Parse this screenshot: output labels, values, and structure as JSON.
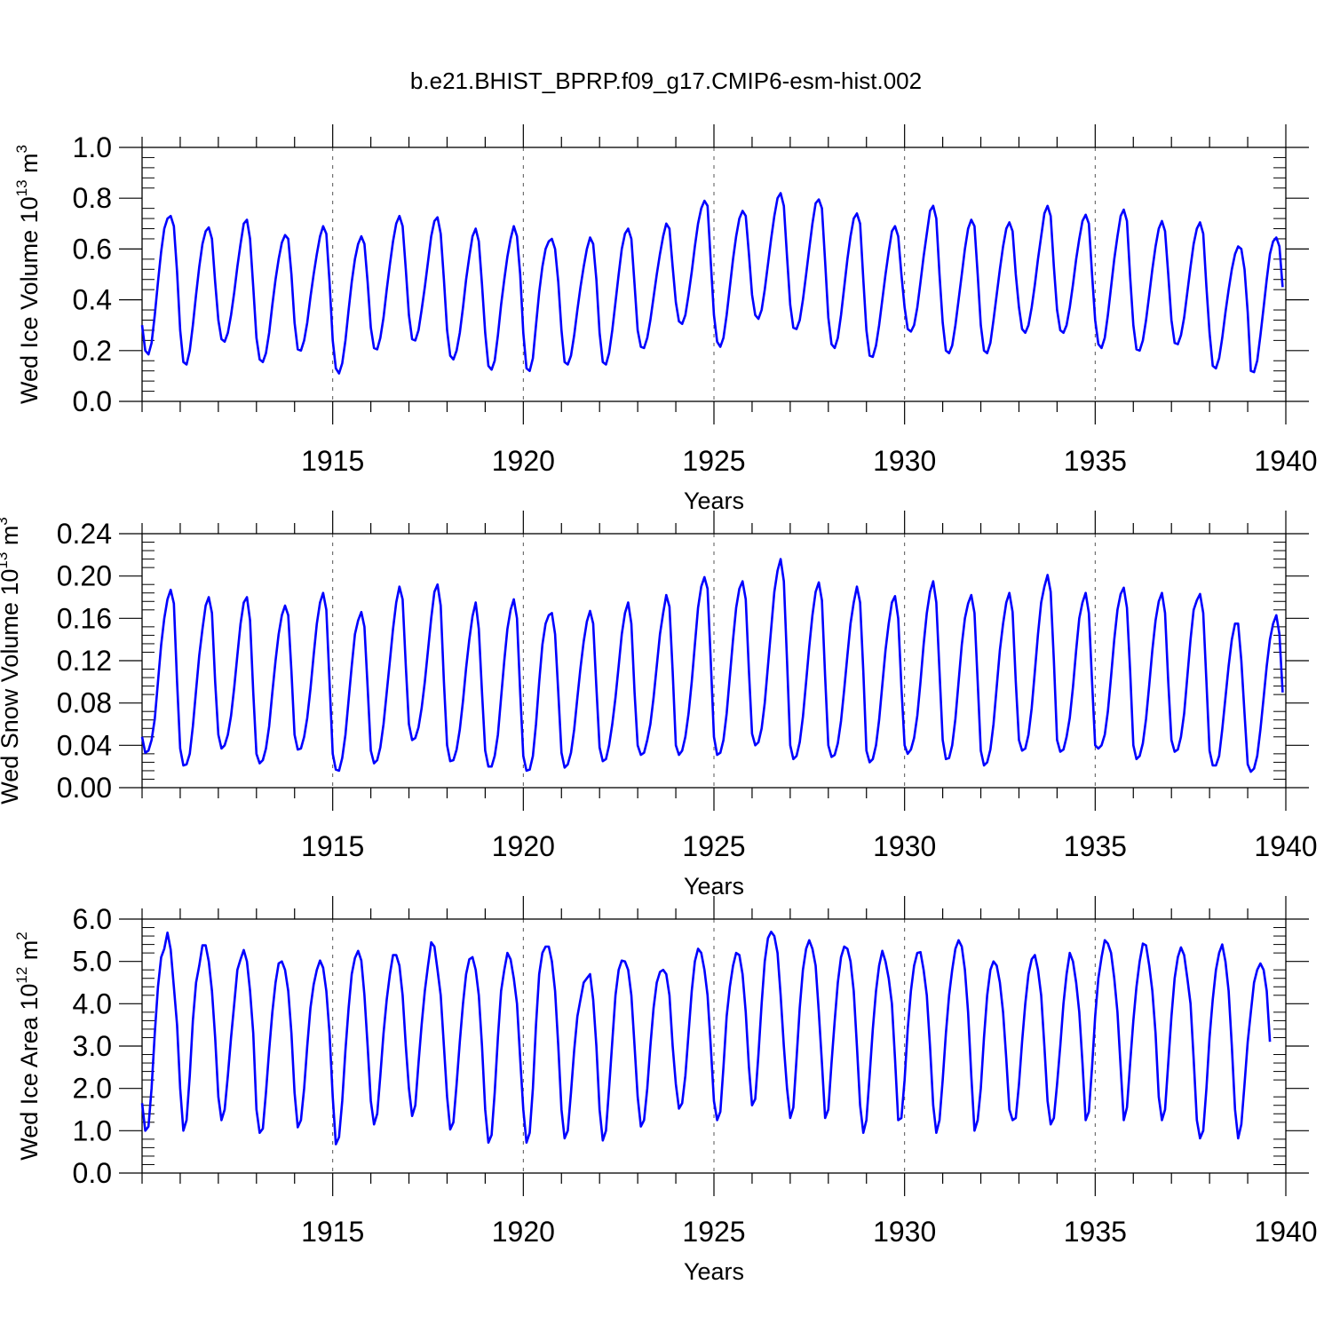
{
  "title": "b.e21.BHIST_BPRP.f09_g17.CMIP6-esm-hist.002",
  "colors": {
    "line": "#0000ff",
    "axis": "#000000",
    "grid": "#555555"
  },
  "chart_data": [
    {
      "type": "line",
      "title": "b.e21.BHIST_BPRP.f09_g17.CMIP6-esm-hist.002",
      "xlabel": "Years",
      "ylabel": {
        "text": "Wed Ice Volume 10",
        "exp": "13",
        "unit": " m",
        "unit_exp": "3"
      },
      "xlim": [
        1910.0,
        1940.0
      ],
      "ylim": [
        0.0,
        1.0
      ],
      "xticks": [
        1915,
        1920,
        1925,
        1930,
        1935,
        1940
      ],
      "xtick_labels": [
        "1915",
        "1920",
        "1925",
        "1930",
        "1935",
        "1940"
      ],
      "yticks": [
        0.0,
        0.2,
        0.4,
        0.6,
        0.8,
        1.0
      ],
      "ytick_labels": [
        "0.0",
        "0.2",
        "0.4",
        "0.6",
        "0.8",
        "1.0"
      ],
      "series_name": "Wed Ice Volume",
      "start_year": 1910.0,
      "step": 0.0833333,
      "values": [
        0.3,
        0.2,
        0.185,
        0.23,
        0.34,
        0.47,
        0.59,
        0.68,
        0.72,
        0.73,
        0.69,
        0.51,
        0.28,
        0.155,
        0.145,
        0.2,
        0.3,
        0.42,
        0.53,
        0.62,
        0.67,
        0.685,
        0.64,
        0.47,
        0.32,
        0.245,
        0.235,
        0.27,
        0.34,
        0.43,
        0.53,
        0.62,
        0.7,
        0.715,
        0.64,
        0.45,
        0.25,
        0.165,
        0.155,
        0.19,
        0.27,
        0.38,
        0.48,
        0.56,
        0.625,
        0.655,
        0.64,
        0.5,
        0.31,
        0.205,
        0.2,
        0.24,
        0.31,
        0.41,
        0.5,
        0.58,
        0.65,
        0.69,
        0.66,
        0.47,
        0.24,
        0.13,
        0.11,
        0.15,
        0.24,
        0.36,
        0.47,
        0.56,
        0.62,
        0.65,
        0.62,
        0.47,
        0.29,
        0.21,
        0.205,
        0.25,
        0.33,
        0.44,
        0.54,
        0.63,
        0.7,
        0.73,
        0.69,
        0.52,
        0.34,
        0.245,
        0.24,
        0.28,
        0.36,
        0.45,
        0.55,
        0.65,
        0.71,
        0.725,
        0.66,
        0.48,
        0.28,
        0.18,
        0.165,
        0.2,
        0.27,
        0.37,
        0.48,
        0.57,
        0.65,
        0.68,
        0.63,
        0.46,
        0.27,
        0.14,
        0.125,
        0.16,
        0.26,
        0.38,
        0.48,
        0.57,
        0.64,
        0.69,
        0.65,
        0.5,
        0.27,
        0.13,
        0.12,
        0.17,
        0.3,
        0.43,
        0.53,
        0.6,
        0.63,
        0.64,
        0.6,
        0.47,
        0.28,
        0.155,
        0.145,
        0.18,
        0.26,
        0.36,
        0.45,
        0.53,
        0.6,
        0.645,
        0.62,
        0.48,
        0.27,
        0.155,
        0.145,
        0.19,
        0.28,
        0.39,
        0.5,
        0.6,
        0.66,
        0.68,
        0.64,
        0.46,
        0.28,
        0.215,
        0.21,
        0.25,
        0.32,
        0.41,
        0.5,
        0.58,
        0.65,
        0.7,
        0.68,
        0.53,
        0.39,
        0.315,
        0.305,
        0.34,
        0.42,
        0.51,
        0.61,
        0.7,
        0.76,
        0.79,
        0.77,
        0.55,
        0.34,
        0.235,
        0.215,
        0.25,
        0.34,
        0.45,
        0.56,
        0.65,
        0.72,
        0.75,
        0.73,
        0.58,
        0.42,
        0.34,
        0.325,
        0.36,
        0.44,
        0.54,
        0.64,
        0.73,
        0.8,
        0.82,
        0.77,
        0.57,
        0.38,
        0.29,
        0.285,
        0.32,
        0.4,
        0.5,
        0.6,
        0.7,
        0.78,
        0.795,
        0.76,
        0.55,
        0.33,
        0.225,
        0.21,
        0.25,
        0.34,
        0.45,
        0.56,
        0.65,
        0.72,
        0.74,
        0.7,
        0.48,
        0.28,
        0.18,
        0.175,
        0.22,
        0.3,
        0.4,
        0.5,
        0.59,
        0.67,
        0.69,
        0.65,
        0.5,
        0.37,
        0.285,
        0.275,
        0.3,
        0.37,
        0.47,
        0.57,
        0.66,
        0.75,
        0.77,
        0.72,
        0.5,
        0.31,
        0.2,
        0.19,
        0.22,
        0.3,
        0.4,
        0.5,
        0.6,
        0.68,
        0.715,
        0.69,
        0.5,
        0.3,
        0.2,
        0.19,
        0.23,
        0.32,
        0.42,
        0.52,
        0.61,
        0.68,
        0.705,
        0.67,
        0.5,
        0.37,
        0.285,
        0.27,
        0.3,
        0.37,
        0.46,
        0.56,
        0.65,
        0.74,
        0.77,
        0.73,
        0.53,
        0.36,
        0.28,
        0.27,
        0.3,
        0.37,
        0.46,
        0.56,
        0.64,
        0.71,
        0.735,
        0.7,
        0.5,
        0.32,
        0.225,
        0.21,
        0.25,
        0.34,
        0.45,
        0.56,
        0.65,
        0.73,
        0.755,
        0.71,
        0.49,
        0.3,
        0.205,
        0.2,
        0.24,
        0.32,
        0.42,
        0.52,
        0.61,
        0.68,
        0.71,
        0.67,
        0.5,
        0.32,
        0.23,
        0.225,
        0.26,
        0.33,
        0.43,
        0.53,
        0.62,
        0.68,
        0.705,
        0.66,
        0.45,
        0.27,
        0.14,
        0.13,
        0.17,
        0.25,
        0.35,
        0.44,
        0.52,
        0.58,
        0.61,
        0.6,
        0.52,
        0.35,
        0.12,
        0.115,
        0.16,
        0.26,
        0.37,
        0.48,
        0.58,
        0.63,
        0.645,
        0.61,
        0.45
      ]
    },
    {
      "type": "line",
      "xlabel": "Years",
      "ylabel": {
        "text": "Wed Snow Volume 10",
        "exp": "13",
        "unit": " m",
        "unit_exp": "3"
      },
      "xlim": [
        1910.0,
        1940.0
      ],
      "ylim": [
        0.0,
        0.24
      ],
      "xticks": [
        1915,
        1920,
        1925,
        1930,
        1935,
        1940
      ],
      "xtick_labels": [
        "1915",
        "1920",
        "1925",
        "1930",
        "1935",
        "1940"
      ],
      "yticks": [
        0.0,
        0.04,
        0.08,
        0.12,
        0.16,
        0.2,
        0.24
      ],
      "ytick_labels": [
        "0.00",
        "0.04",
        "0.08",
        "0.12",
        "0.16",
        "0.20",
        "0.24"
      ],
      "series_name": "Wed Snow Volume",
      "start_year": 1910.0,
      "step": 0.0833333,
      "values": [
        0.048,
        0.033,
        0.035,
        0.045,
        0.065,
        0.1,
        0.135,
        0.16,
        0.178,
        0.187,
        0.174,
        0.1,
        0.037,
        0.021,
        0.022,
        0.032,
        0.058,
        0.092,
        0.125,
        0.15,
        0.172,
        0.18,
        0.165,
        0.1,
        0.05,
        0.037,
        0.04,
        0.05,
        0.068,
        0.095,
        0.125,
        0.155,
        0.175,
        0.18,
        0.158,
        0.09,
        0.032,
        0.023,
        0.026,
        0.037,
        0.058,
        0.09,
        0.12,
        0.145,
        0.163,
        0.172,
        0.163,
        0.11,
        0.05,
        0.036,
        0.037,
        0.048,
        0.066,
        0.093,
        0.125,
        0.155,
        0.175,
        0.184,
        0.168,
        0.1,
        0.032,
        0.017,
        0.016,
        0.028,
        0.05,
        0.083,
        0.115,
        0.145,
        0.158,
        0.166,
        0.152,
        0.095,
        0.035,
        0.023,
        0.026,
        0.038,
        0.06,
        0.09,
        0.12,
        0.15,
        0.175,
        0.19,
        0.178,
        0.115,
        0.06,
        0.045,
        0.047,
        0.057,
        0.075,
        0.1,
        0.13,
        0.16,
        0.185,
        0.192,
        0.172,
        0.1,
        0.04,
        0.025,
        0.026,
        0.036,
        0.055,
        0.082,
        0.113,
        0.14,
        0.162,
        0.175,
        0.15,
        0.09,
        0.035,
        0.02,
        0.02,
        0.03,
        0.05,
        0.085,
        0.12,
        0.15,
        0.168,
        0.178,
        0.16,
        0.09,
        0.03,
        0.016,
        0.017,
        0.03,
        0.06,
        0.1,
        0.135,
        0.155,
        0.163,
        0.165,
        0.145,
        0.09,
        0.033,
        0.019,
        0.022,
        0.033,
        0.055,
        0.085,
        0.113,
        0.138,
        0.157,
        0.167,
        0.155,
        0.095,
        0.038,
        0.025,
        0.027,
        0.04,
        0.06,
        0.085,
        0.115,
        0.145,
        0.165,
        0.175,
        0.155,
        0.09,
        0.04,
        0.031,
        0.033,
        0.045,
        0.06,
        0.085,
        0.115,
        0.145,
        0.165,
        0.182,
        0.171,
        0.11,
        0.04,
        0.031,
        0.035,
        0.048,
        0.07,
        0.1,
        0.135,
        0.17,
        0.19,
        0.199,
        0.188,
        0.12,
        0.048,
        0.031,
        0.033,
        0.045,
        0.07,
        0.105,
        0.14,
        0.17,
        0.188,
        0.195,
        0.178,
        0.11,
        0.051,
        0.04,
        0.043,
        0.056,
        0.08,
        0.115,
        0.15,
        0.185,
        0.205,
        0.216,
        0.195,
        0.12,
        0.04,
        0.027,
        0.03,
        0.043,
        0.067,
        0.1,
        0.133,
        0.163,
        0.185,
        0.194,
        0.177,
        0.105,
        0.04,
        0.029,
        0.031,
        0.042,
        0.063,
        0.093,
        0.125,
        0.155,
        0.175,
        0.19,
        0.175,
        0.11,
        0.035,
        0.024,
        0.027,
        0.04,
        0.064,
        0.097,
        0.13,
        0.155,
        0.175,
        0.181,
        0.16,
        0.095,
        0.04,
        0.032,
        0.036,
        0.047,
        0.068,
        0.1,
        0.135,
        0.165,
        0.185,
        0.195,
        0.175,
        0.11,
        0.045,
        0.027,
        0.028,
        0.04,
        0.065,
        0.1,
        0.135,
        0.16,
        0.174,
        0.182,
        0.165,
        0.1,
        0.035,
        0.021,
        0.024,
        0.036,
        0.06,
        0.095,
        0.13,
        0.155,
        0.175,
        0.184,
        0.166,
        0.1,
        0.045,
        0.035,
        0.037,
        0.05,
        0.075,
        0.11,
        0.145,
        0.175,
        0.19,
        0.201,
        0.185,
        0.12,
        0.045,
        0.034,
        0.036,
        0.048,
        0.066,
        0.095,
        0.13,
        0.16,
        0.175,
        0.184,
        0.165,
        0.1,
        0.04,
        0.037,
        0.04,
        0.05,
        0.072,
        0.105,
        0.14,
        0.168,
        0.183,
        0.189,
        0.17,
        0.11,
        0.04,
        0.027,
        0.03,
        0.042,
        0.065,
        0.097,
        0.13,
        0.158,
        0.176,
        0.184,
        0.165,
        0.1,
        0.045,
        0.034,
        0.036,
        0.048,
        0.07,
        0.105,
        0.14,
        0.168,
        0.177,
        0.183,
        0.165,
        0.1,
        0.035,
        0.021,
        0.021,
        0.03,
        0.055,
        0.085,
        0.115,
        0.14,
        0.155,
        0.155,
        0.12,
        0.07,
        0.022,
        0.015,
        0.018,
        0.03,
        0.055,
        0.085,
        0.115,
        0.14,
        0.155,
        0.163,
        0.145,
        0.09
      ]
    },
    {
      "type": "line",
      "xlabel": "Years",
      "ylabel": {
        "text": "Wed Ice Area 10",
        "exp": "12",
        "unit": " m",
        "unit_exp": "2"
      },
      "xlim": [
        1910.0,
        1940.0
      ],
      "ylim": [
        0.0,
        6.0
      ],
      "xticks": [
        1915,
        1920,
        1925,
        1930,
        1935,
        1940
      ],
      "xtick_labels": [
        "1915",
        "1920",
        "1925",
        "1930",
        "1935",
        "1940"
      ],
      "yticks": [
        0.0,
        1.0,
        2.0,
        3.0,
        4.0,
        5.0,
        6.0
      ],
      "ytick_labels": [
        "0.0",
        "1.0",
        "2.0",
        "3.0",
        "4.0",
        "5.0",
        "6.0"
      ],
      "series_name": "Wed Ice Area",
      "start_year": 1910.0,
      "step": 0.0833333,
      "values": [
        1.65,
        1.0,
        1.1,
        2.0,
        3.3,
        4.4,
        5.1,
        5.3,
        5.68,
        5.28,
        4.4,
        3.5,
        2.0,
        1.0,
        1.25,
        2.3,
        3.6,
        4.5,
        4.9,
        5.38,
        5.38,
        5.0,
        4.3,
        3.2,
        1.8,
        1.25,
        1.5,
        2.3,
        3.2,
        4.0,
        4.8,
        5.05,
        5.27,
        5.0,
        4.3,
        3.3,
        1.5,
        0.95,
        1.05,
        1.9,
        2.9,
        3.8,
        4.5,
        4.95,
        5.0,
        4.8,
        4.3,
        3.3,
        1.9,
        1.08,
        1.25,
        2.0,
        3.0,
        3.9,
        4.45,
        4.8,
        5.02,
        4.85,
        4.3,
        3.3,
        1.8,
        0.68,
        0.85,
        1.7,
        2.9,
        3.9,
        4.7,
        5.08,
        5.25,
        5.02,
        4.2,
        3.0,
        1.7,
        1.15,
        1.4,
        2.3,
        3.3,
        4.1,
        4.7,
        5.15,
        5.15,
        4.9,
        4.2,
        3.0,
        2.0,
        1.35,
        1.6,
        2.6,
        3.5,
        4.3,
        4.9,
        5.45,
        5.35,
        4.8,
        4.2,
        3.0,
        1.8,
        1.03,
        1.2,
        2.1,
        3.1,
        4.0,
        4.7,
        5.05,
        5.1,
        4.8,
        4.2,
        3.0,
        1.5,
        0.72,
        0.9,
        1.9,
        3.2,
        4.3,
        4.8,
        5.2,
        5.05,
        4.6,
        4.0,
        2.7,
        1.5,
        0.72,
        0.95,
        2.0,
        3.5,
        4.7,
        5.2,
        5.35,
        5.35,
        5.0,
        4.3,
        3.0,
        1.5,
        0.82,
        1.0,
        1.9,
        2.9,
        3.7,
        4.1,
        4.5,
        4.6,
        4.7,
        4.1,
        3.0,
        1.5,
        0.77,
        1.0,
        2.0,
        3.1,
        4.2,
        4.8,
        5.02,
        5.0,
        4.8,
        4.2,
        3.0,
        1.8,
        1.1,
        1.25,
        2.0,
        3.0,
        3.9,
        4.5,
        4.75,
        4.8,
        4.7,
        4.2,
        3.0,
        2.1,
        1.52,
        1.65,
        2.3,
        3.3,
        4.3,
        5.0,
        5.3,
        5.2,
        4.8,
        4.2,
        3.0,
        1.7,
        1.25,
        1.45,
        2.5,
        3.7,
        4.4,
        4.9,
        5.2,
        5.15,
        4.7,
        3.8,
        2.5,
        1.6,
        1.75,
        2.8,
        4.0,
        5.0,
        5.55,
        5.7,
        5.6,
        5.2,
        4.2,
        3.0,
        2.0,
        1.3,
        1.55,
        2.7,
        3.9,
        4.8,
        5.3,
        5.5,
        5.3,
        4.9,
        3.8,
        2.6,
        1.3,
        1.5,
        2.6,
        3.6,
        4.5,
        5.1,
        5.35,
        5.3,
        5.0,
        4.3,
        3.0,
        1.6,
        0.95,
        1.25,
        2.3,
        3.4,
        4.3,
        4.9,
        5.25,
        5.0,
        4.6,
        4.0,
        2.7,
        1.25,
        1.3,
        2.2,
        3.4,
        4.3,
        4.9,
        5.2,
        5.22,
        4.8,
        4.2,
        3.0,
        1.6,
        0.95,
        1.25,
        2.2,
        3.3,
        4.2,
        4.8,
        5.3,
        5.5,
        5.35,
        4.8,
        3.8,
        2.3,
        1.0,
        1.25,
        2.0,
        3.2,
        4.2,
        4.8,
        5.0,
        4.9,
        4.5,
        3.8,
        2.7,
        1.5,
        1.25,
        1.3,
        2.1,
        3.1,
        4.0,
        4.7,
        5.05,
        5.15,
        4.8,
        4.2,
        3.0,
        1.7,
        1.15,
        1.3,
        2.1,
        3.0,
        4.0,
        4.7,
        5.2,
        5.0,
        4.5,
        3.8,
        2.6,
        1.25,
        1.45,
        2.5,
        3.7,
        4.6,
        5.1,
        5.5,
        5.42,
        5.2,
        4.6,
        3.8,
        2.5,
        1.25,
        1.55,
        2.6,
        3.6,
        4.4,
        5.0,
        5.42,
        5.38,
        4.9,
        4.3,
        3.3,
        1.8,
        1.25,
        1.5,
        2.6,
        3.7,
        4.6,
        5.1,
        5.33,
        5.15,
        4.6,
        4.0,
        2.7,
        1.25,
        0.82,
        1.0,
        2.0,
        3.2,
        4.1,
        4.8,
        5.2,
        5.4,
        5.0,
        4.3,
        3.0,
        1.5,
        0.82,
        1.15,
        2.1,
        3.1,
        3.8,
        4.5,
        4.8,
        4.95,
        4.8,
        4.3,
        3.1
      ]
    }
  ]
}
